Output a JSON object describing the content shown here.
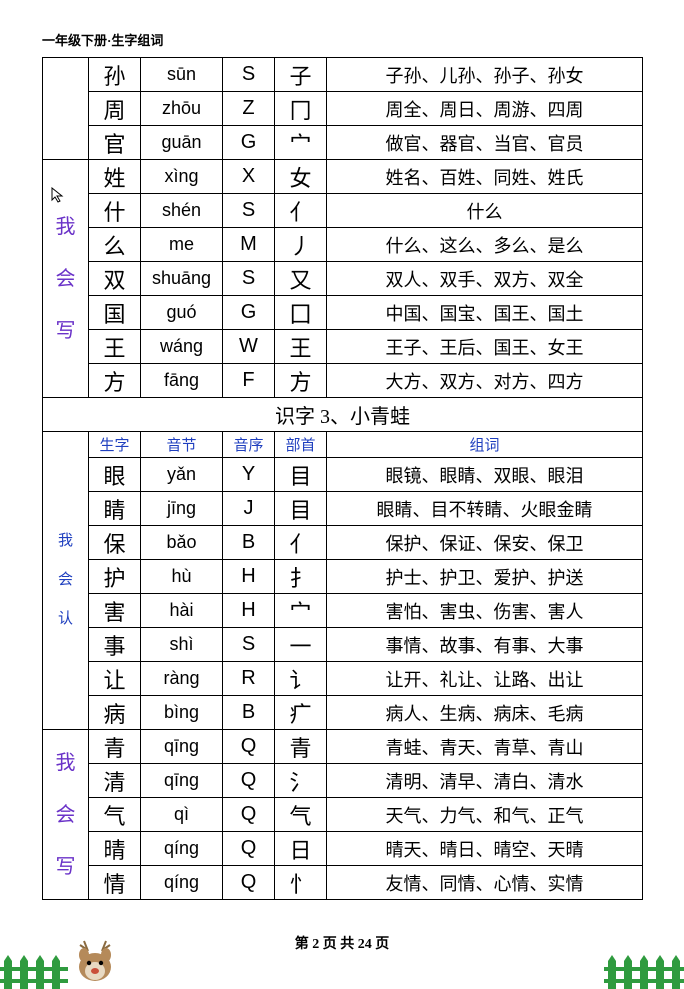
{
  "header": {
    "title": "一年级下册·生字组词"
  },
  "footer": {
    "text": "第 2 页 共 24 页"
  },
  "colors": {
    "vlabel": "#6a32c8",
    "header_row": "#1f3fbf",
    "border": "#000000",
    "fence": "#2f9b3f",
    "deer_body": "#b58a5a",
    "deer_nose": "#c94f3a"
  },
  "labels": {
    "wo_hui_xie": "我会写",
    "wo_hui_ren": "我会认"
  },
  "section3": {
    "title": "识字 3、小青蛙"
  },
  "headers": {
    "char": "生字",
    "pinyin": "音节",
    "seq": "音序",
    "radical": "部首",
    "words": "组词"
  },
  "block1_tail": [
    {
      "char": "孙",
      "pinyin": "sūn",
      "seq": "S",
      "radical": "子",
      "words": "子孙、儿孙、孙子、孙女"
    },
    {
      "char": "周",
      "pinyin": "zhōu",
      "seq": "Z",
      "radical": "冂",
      "words": "周全、周日、周游、四周"
    },
    {
      "char": "官",
      "pinyin": "guān",
      "seq": "G",
      "radical": "宀",
      "words": "做官、器官、当官、官员"
    }
  ],
  "block1_write": [
    {
      "char": "姓",
      "pinyin": "xìng",
      "seq": "X",
      "radical": "女",
      "words": "姓名、百姓、同姓、姓氏"
    },
    {
      "char": "什",
      "pinyin": "shén",
      "seq": "S",
      "radical": "亻",
      "words": "什么"
    },
    {
      "char": "么",
      "pinyin": "me",
      "seq": "M",
      "radical": "丿",
      "words": "什么、这么、多么、是么"
    },
    {
      "char": "双",
      "pinyin": "shuāng",
      "seq": "S",
      "radical": "又",
      "words": "双人、双手、双方、双全"
    },
    {
      "char": "国",
      "pinyin": "guó",
      "seq": "G",
      "radical": "囗",
      "words": "中国、国宝、国王、国土"
    },
    {
      "char": "王",
      "pinyin": "wáng",
      "seq": "W",
      "radical": "王",
      "words": "王子、王后、国王、女王"
    },
    {
      "char": "方",
      "pinyin": "fāng",
      "seq": "F",
      "radical": "方",
      "words": "大方、双方、对方、四方"
    }
  ],
  "block3_read": [
    {
      "char": "眼",
      "pinyin": "yǎn",
      "seq": "Y",
      "radical": "目",
      "words": "眼镜、眼睛、双眼、眼泪"
    },
    {
      "char": "睛",
      "pinyin": "jīng",
      "seq": "J",
      "radical": "目",
      "words": "眼睛、目不转睛、火眼金睛"
    },
    {
      "char": "保",
      "pinyin": "bǎo",
      "seq": "B",
      "radical": "亻",
      "words": "保护、保证、保安、保卫"
    },
    {
      "char": "护",
      "pinyin": "hù",
      "seq": "H",
      "radical": "扌",
      "words": "护士、护卫、爱护、护送"
    },
    {
      "char": "害",
      "pinyin": "hài",
      "seq": "H",
      "radical": "宀",
      "words": "害怕、害虫、伤害、害人"
    },
    {
      "char": "事",
      "pinyin": "shì",
      "seq": "S",
      "radical": "一",
      "words": "事情、故事、有事、大事"
    },
    {
      "char": "让",
      "pinyin": "ràng",
      "seq": "R",
      "radical": "讠",
      "words": "让开、礼让、让路、出让"
    },
    {
      "char": "病",
      "pinyin": "bìng",
      "seq": "B",
      "radical": "疒",
      "words": "病人、生病、病床、毛病"
    }
  ],
  "block3_write": [
    {
      "char": "青",
      "pinyin": "qīng",
      "seq": "Q",
      "radical": "青",
      "words": "青蛙、青天、青草、青山"
    },
    {
      "char": "清",
      "pinyin": "qīng",
      "seq": "Q",
      "radical": "氵",
      "words": "清明、清早、清白、清水"
    },
    {
      "char": "气",
      "pinyin": "qì",
      "seq": "Q",
      "radical": "气",
      "words": "天气、力气、和气、正气"
    },
    {
      "char": "晴",
      "pinyin": "qíng",
      "seq": "Q",
      "radical": "日",
      "words": "晴天、晴日、晴空、天晴"
    },
    {
      "char": "情",
      "pinyin": "qíng",
      "seq": "Q",
      "radical": "忄",
      "words": "友情、同情、心情、实情"
    }
  ]
}
